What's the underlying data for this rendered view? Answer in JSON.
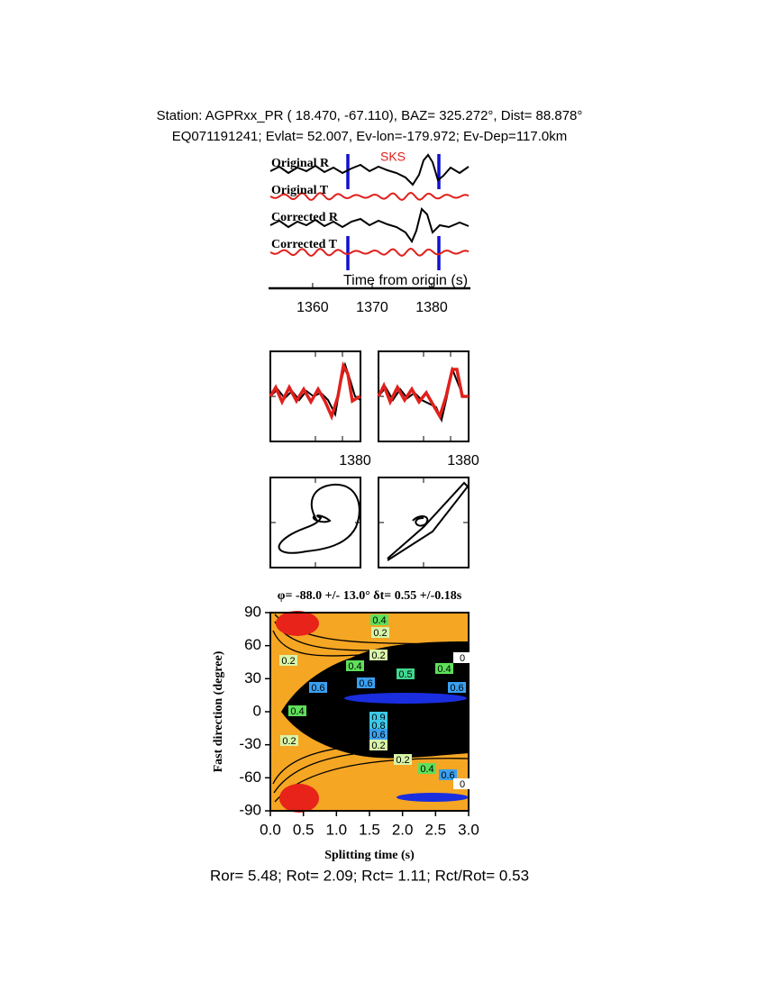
{
  "header": {
    "station": "Station: AGPRxx_PR (  18.470,  -67.110), BAZ=  325.272°, Dist=   88.878°",
    "event": "EQ071191241; Evlat=  52.007, Ev-lon=-179.972; Ev-Dep=117.0km"
  },
  "traces": {
    "labels": [
      "Original R",
      "Original T",
      "Corrected R",
      "Corrected T"
    ],
    "phase": "SKS",
    "axis": {
      "label": "Time from origin (s)",
      "xlim": [
        1352.9,
        1386.2
      ],
      "xticks": [
        1360,
        1370,
        1380
      ]
    }
  },
  "panels": {
    "tick_labels": [
      1380,
      1380
    ]
  },
  "grid_search": {
    "title": "φ= -88.0 +/- 13.0° δt= 0.55 +/-0.18s",
    "xlabel": "Splitting time (s)",
    "ylabel": "Fast direction (degree)",
    "xlim": [
      0,
      3
    ],
    "ylim": [
      -90,
      90
    ],
    "xticks": [
      {
        "value": 0,
        "label": "0.0"
      },
      {
        "value": 0.5,
        "label": "0.5"
      },
      {
        "value": 1,
        "label": "1.0"
      },
      {
        "value": 1.5,
        "label": "1.5"
      },
      {
        "value": 2,
        "label": "2.0"
      },
      {
        "value": 2.5,
        "label": "2.5"
      },
      {
        "value": 3,
        "label": "3.0"
      }
    ],
    "yticks": [
      90,
      60,
      30,
      0,
      -30,
      -60,
      -90
    ],
    "contour_labels": [
      0.4,
      0.2,
      0.2,
      0,
      0.2,
      0.4,
      0.5,
      0.4,
      0.6,
      0.6,
      0.6,
      0.4,
      0.9,
      0.8,
      0.6,
      0.2,
      0.2,
      0.2,
      0.4,
      0.6,
      0
    ]
  },
  "footer": "Ror= 5.48; Rot= 2.09; Rct= 1.11; Rct/Rot= 0.53"
}
